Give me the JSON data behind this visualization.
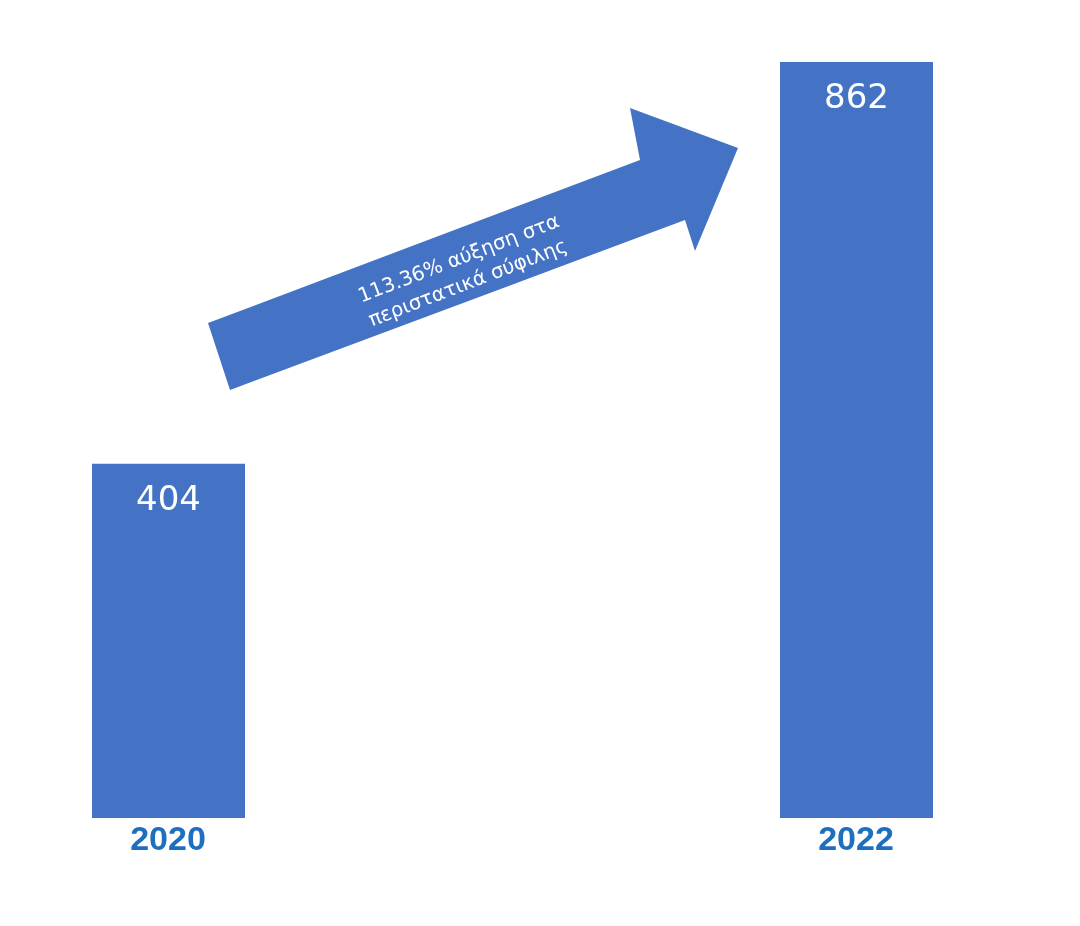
{
  "chart_data": {
    "type": "bar",
    "categories": [
      "2020",
      "2022"
    ],
    "values": [
      404,
      862
    ],
    "color": "#4472c4",
    "data_labels": true,
    "annotations": [
      "113.36% αύξηση στα περιστατικά σύφιλης"
    ]
  }
}
